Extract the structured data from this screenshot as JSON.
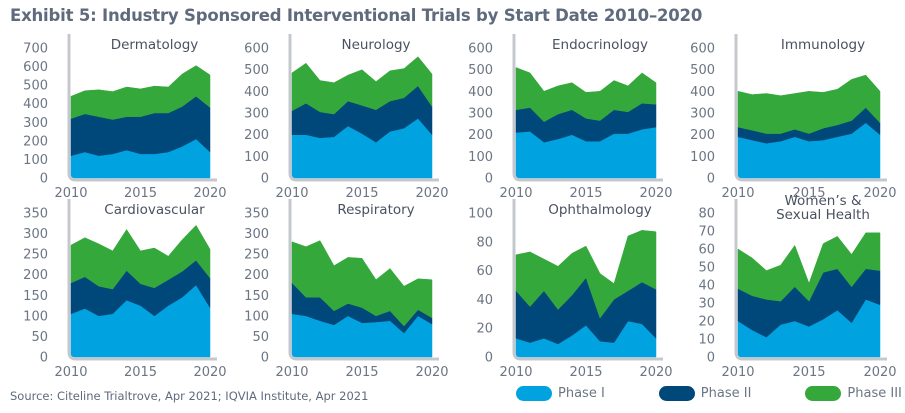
{
  "title": "Exhibit 5: Industry Sponsored Interventional Trials by Start Date 2010–2020",
  "source": "Source: Citeline Trialtrove, Apr 2021; IQVIA Institute, Apr 2021",
  "colors": {
    "phase1": "#00a3e0",
    "phase2": "#00477a",
    "phase3": "#34a83b"
  },
  "legend": [
    {
      "label": "Phase I",
      "color": "#00a3e0"
    },
    {
      "label": "Phase II",
      "color": "#00477a"
    },
    {
      "label": "Phase III",
      "color": "#34a83b"
    }
  ],
  "chart_data": [
    {
      "type": "area",
      "stacked": true,
      "title": "Dermatology",
      "x": [
        2010,
        2011,
        2012,
        2013,
        2014,
        2015,
        2016,
        2017,
        2018,
        2019,
        2020
      ],
      "xticks": [
        "2010",
        "2015",
        "2020"
      ],
      "ylim": [
        0,
        700
      ],
      "yticks": [
        "0",
        "100",
        "200",
        "300",
        "400",
        "500",
        "600",
        "700"
      ],
      "series": [
        {
          "name": "Phase I",
          "values": [
            120,
            140,
            120,
            130,
            150,
            130,
            130,
            140,
            170,
            210,
            140
          ]
        },
        {
          "name": "Phase II",
          "values": [
            200,
            205,
            210,
            185,
            180,
            200,
            220,
            210,
            215,
            230,
            240
          ]
        },
        {
          "name": "Phase III",
          "values": [
            120,
            125,
            145,
            150,
            160,
            150,
            145,
            140,
            175,
            165,
            175
          ]
        }
      ]
    },
    {
      "type": "area",
      "stacked": true,
      "title": "Neurology",
      "x": [
        2010,
        2011,
        2012,
        2013,
        2014,
        2015,
        2016,
        2017,
        2018,
        2019,
        2020
      ],
      "xticks": [
        "2010",
        "2015",
        "2020"
      ],
      "ylim": [
        0,
        600
      ],
      "yticks": [
        "0",
        "100",
        "200",
        "300",
        "400",
        "500",
        "600"
      ],
      "series": [
        {
          "name": "Phase I",
          "values": [
            200,
            200,
            185,
            190,
            240,
            205,
            165,
            215,
            230,
            275,
            200
          ]
        },
        {
          "name": "Phase II",
          "values": [
            110,
            145,
            120,
            105,
            115,
            130,
            150,
            140,
            140,
            150,
            130
          ]
        },
        {
          "name": "Phase III",
          "values": [
            175,
            185,
            145,
            145,
            120,
            165,
            130,
            140,
            135,
            135,
            150
          ]
        }
      ]
    },
    {
      "type": "area",
      "stacked": true,
      "title": "Endocrinology",
      "x": [
        2010,
        2011,
        2012,
        2013,
        2014,
        2015,
        2016,
        2017,
        2018,
        2019,
        2020
      ],
      "xticks": [
        "2010",
        "2015",
        "2020"
      ],
      "ylim": [
        0,
        600
      ],
      "yticks": [
        "0",
        "100",
        "200",
        "300",
        "400",
        "500",
        "600"
      ],
      "series": [
        {
          "name": "Phase I",
          "values": [
            210,
            215,
            165,
            180,
            200,
            170,
            170,
            205,
            205,
            225,
            235
          ]
        },
        {
          "name": "Phase II",
          "values": [
            105,
            110,
            95,
            115,
            115,
            105,
            95,
            110,
            100,
            120,
            105
          ]
        },
        {
          "name": "Phase III",
          "values": [
            195,
            160,
            140,
            130,
            125,
            120,
            135,
            135,
            120,
            140,
            100
          ]
        }
      ]
    },
    {
      "type": "area",
      "stacked": true,
      "title": "Immunology",
      "x": [
        2010,
        2011,
        2012,
        2013,
        2014,
        2015,
        2016,
        2017,
        2018,
        2019,
        2020
      ],
      "xticks": [
        "2010",
        "2015",
        "2020"
      ],
      "ylim": [
        0,
        600
      ],
      "yticks": [
        "0",
        "100",
        "200",
        "300",
        "400",
        "500",
        "600"
      ],
      "series": [
        {
          "name": "Phase I",
          "values": [
            190,
            175,
            160,
            170,
            190,
            170,
            175,
            190,
            205,
            255,
            200
          ]
        },
        {
          "name": "Phase II",
          "values": [
            45,
            45,
            45,
            35,
            35,
            35,
            55,
            55,
            60,
            70,
            55
          ]
        },
        {
          "name": "Phase III",
          "values": [
            165,
            165,
            185,
            175,
            165,
            195,
            165,
            165,
            190,
            150,
            145
          ]
        }
      ]
    },
    {
      "type": "area",
      "stacked": true,
      "title": "Cardiovascular",
      "x": [
        2010,
        2011,
        2012,
        2013,
        2014,
        2015,
        2016,
        2017,
        2018,
        2019,
        2020
      ],
      "xticks": [
        "2010",
        "2015",
        "2020"
      ],
      "ylim": [
        0,
        350
      ],
      "yticks": [
        "0",
        "50",
        "100",
        "150",
        "200",
        "250",
        "300",
        "350"
      ],
      "series": [
        {
          "name": "Phase I",
          "values": [
            105,
            118,
            100,
            105,
            138,
            125,
            100,
            125,
            145,
            175,
            120
          ]
        },
        {
          "name": "Phase II",
          "values": [
            75,
            77,
            72,
            60,
            72,
            53,
            68,
            63,
            63,
            60,
            72
          ]
        },
        {
          "name": "Phase III",
          "values": [
            92,
            95,
            103,
            93,
            100,
            80,
            97,
            57,
            77,
            85,
            70
          ]
        }
      ]
    },
    {
      "type": "area",
      "stacked": true,
      "title": "Respiratory",
      "x": [
        2010,
        2011,
        2012,
        2013,
        2014,
        2015,
        2016,
        2017,
        2018,
        2019,
        2020
      ],
      "xticks": [
        "2010",
        "2015",
        "2020"
      ],
      "ylim": [
        0,
        350
      ],
      "yticks": [
        "0",
        "50",
        "100",
        "150",
        "200",
        "250",
        "300",
        "350"
      ],
      "series": [
        {
          "name": "Phase I",
          "values": [
            105,
            100,
            88,
            78,
            100,
            83,
            85,
            88,
            58,
            100,
            80
          ]
        },
        {
          "name": "Phase II",
          "values": [
            75,
            45,
            57,
            34,
            30,
            37,
            15,
            24,
            17,
            15,
            15
          ]
        },
        {
          "name": "Phase III",
          "values": [
            100,
            123,
            138,
            110,
            112,
            120,
            88,
            103,
            97,
            75,
            93
          ]
        }
      ]
    },
    {
      "type": "area",
      "stacked": true,
      "title": "Ophthalmology",
      "x": [
        2010,
        2011,
        2012,
        2013,
        2014,
        2015,
        2016,
        2017,
        2018,
        2019,
        2020
      ],
      "xticks": [
        "2010",
        "2015",
        "2020"
      ],
      "ylim": [
        0,
        100
      ],
      "yticks": [
        "0",
        "20",
        "40",
        "60",
        "80",
        "100"
      ],
      "series": [
        {
          "name": "Phase I",
          "values": [
            13,
            10,
            13,
            9,
            15,
            22,
            11,
            10,
            25,
            23,
            13
          ]
        },
        {
          "name": "Phase II",
          "values": [
            33,
            25,
            33,
            24,
            28,
            33,
            16,
            30,
            21,
            29,
            34
          ]
        },
        {
          "name": "Phase III",
          "values": [
            25,
            38,
            22,
            30,
            29,
            22,
            31,
            11,
            38,
            36,
            40
          ]
        }
      ]
    },
    {
      "type": "area",
      "stacked": true,
      "title": "Women's & Sexual Health",
      "title_lines": [
        "Women’s &",
        "Sexual Health"
      ],
      "x": [
        2010,
        2011,
        2012,
        2013,
        2014,
        2015,
        2016,
        2017,
        2018,
        2019,
        2020
      ],
      "xticks": [
        "2010",
        "2015",
        "2020"
      ],
      "ylim": [
        0,
        80
      ],
      "yticks": [
        "0",
        "10",
        "20",
        "30",
        "40",
        "50",
        "60",
        "70",
        "80"
      ],
      "series": [
        {
          "name": "Phase I",
          "values": [
            20,
            15,
            11,
            18,
            20,
            17,
            21,
            26,
            19,
            32,
            29
          ]
        },
        {
          "name": "Phase II",
          "values": [
            18,
            19,
            21,
            13,
            19,
            14,
            26,
            23,
            20,
            17,
            19
          ]
        },
        {
          "name": "Phase III",
          "values": [
            22,
            21,
            16,
            20,
            23,
            10,
            16,
            18,
            18,
            20,
            21
          ]
        }
      ]
    }
  ]
}
